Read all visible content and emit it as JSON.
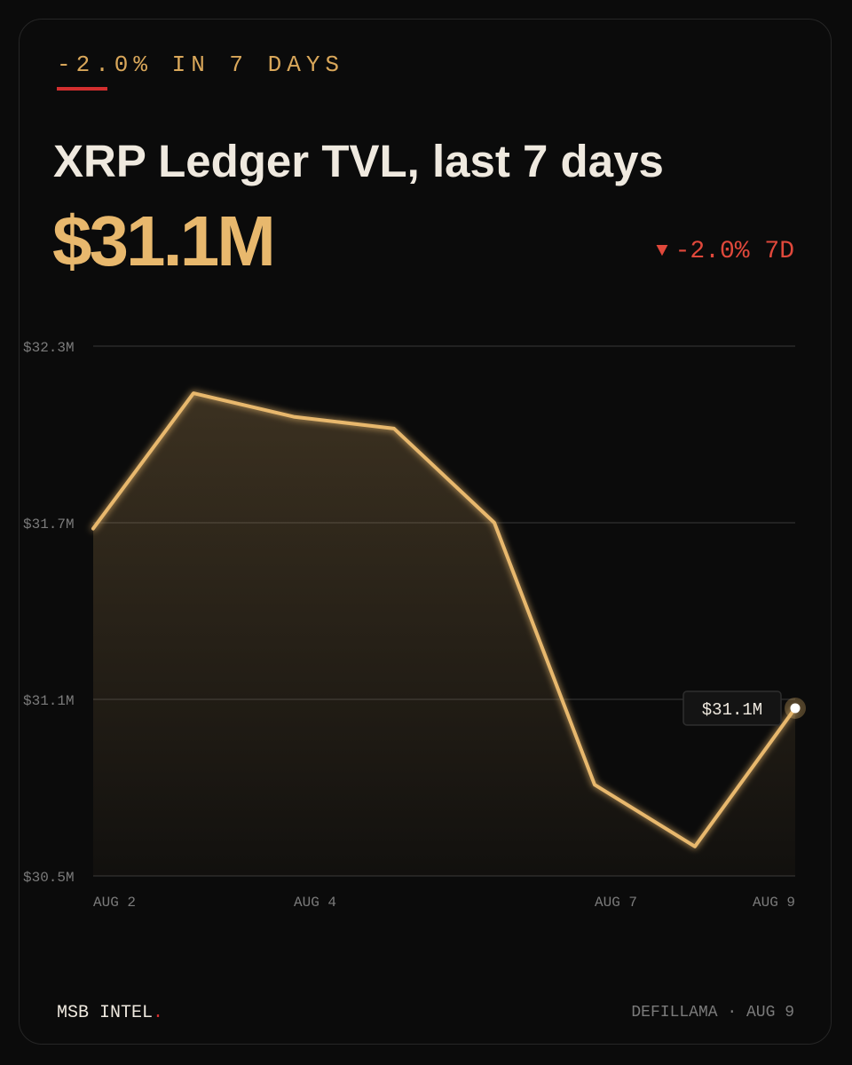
{
  "eyebrow": "-2.0% IN 7 DAYS",
  "title": "XRP Ledger TVL, last 7 days",
  "big_value": "$31.1M",
  "change": {
    "arrow": "▼",
    "text": "-2.0% 7D",
    "color": "#e0483b"
  },
  "accent_color": "#e8b86d",
  "chart_data": {
    "type": "area",
    "title": "XRP Ledger TVL, last 7 days",
    "x_tick_labels": [
      "AUG 2",
      "AUG 4",
      "AUG 7",
      "AUG 9"
    ],
    "x_tick_positions": [
      0,
      2,
      5,
      7
    ],
    "y_tick_labels": [
      "$32.3M",
      "$31.7M",
      "$31.1M",
      "$30.5M"
    ],
    "y_tick_values": [
      32.3,
      31.7,
      31.1,
      30.5
    ],
    "ylim": [
      30.5,
      32.3
    ],
    "grid": true,
    "legend": "none",
    "units": "$M",
    "series": [
      {
        "color": "#e8b86d",
        "x": [
          0,
          1,
          2,
          3,
          4,
          5,
          6,
          7
        ],
        "values": [
          31.68,
          32.14,
          32.06,
          32.02,
          31.7,
          30.81,
          30.6,
          31.07
        ]
      }
    ],
    "tooltip": {
      "label": "$31.1M",
      "point_index": 7
    }
  },
  "footer": {
    "brand": "MSB INTEL",
    "brand_dot": ".",
    "source": "DEFILLAMA · AUG 9"
  }
}
